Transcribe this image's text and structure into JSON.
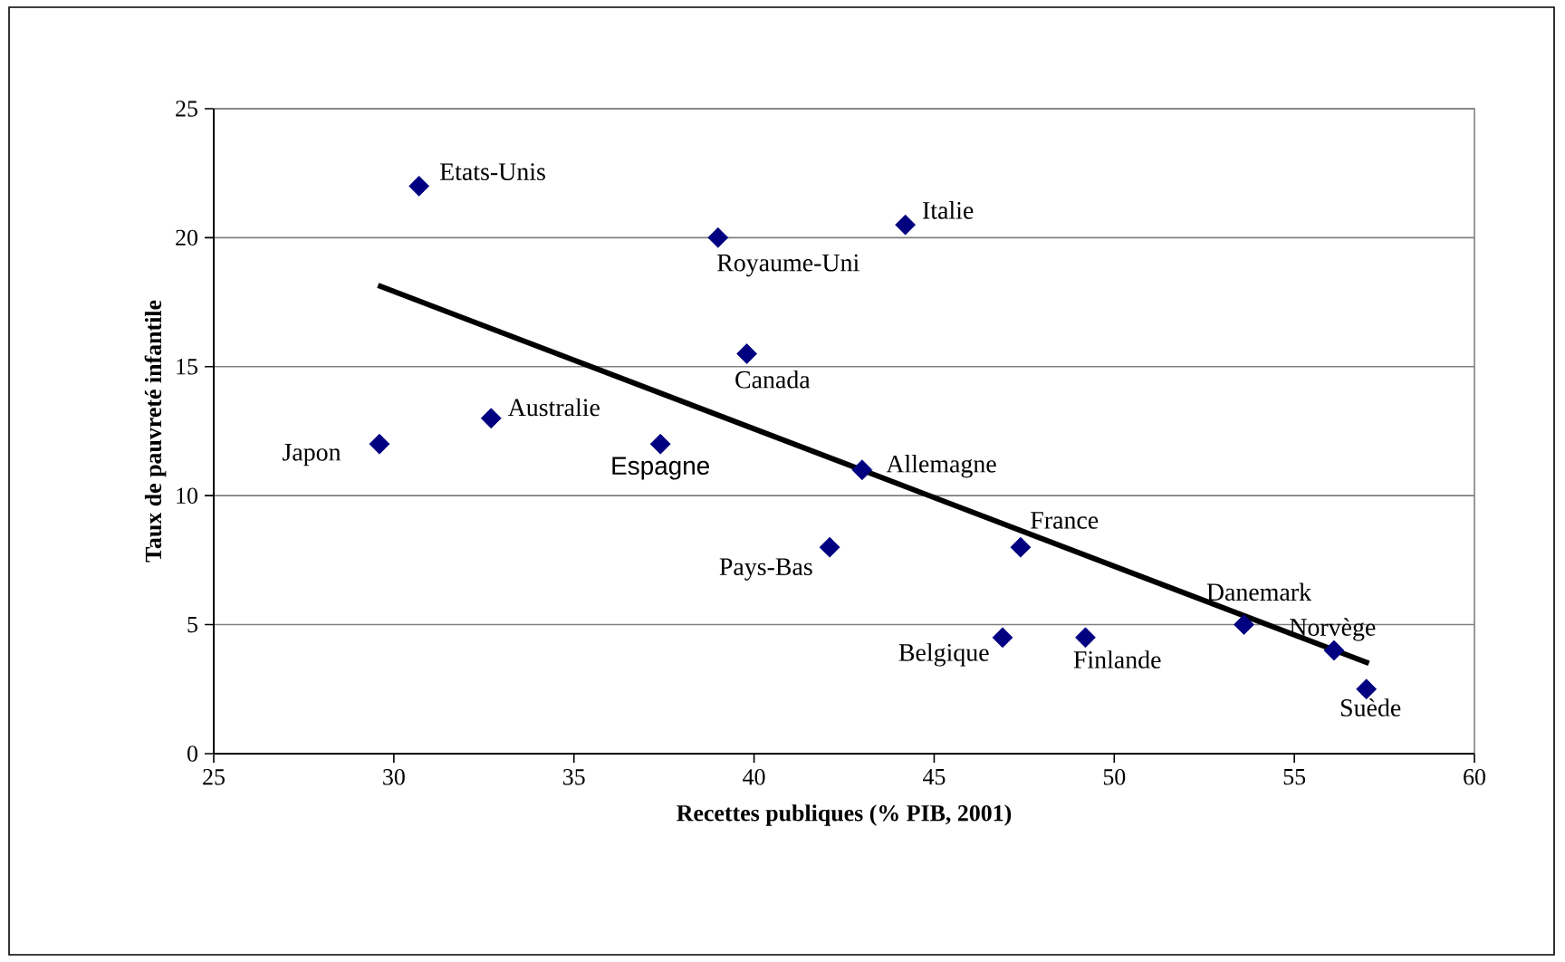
{
  "chart_data": {
    "type": "scatter",
    "xlabel": "Recettes publiques (% PIB, 2001)",
    "ylabel": "Taux de pauvreté infantile",
    "xlim": [
      25,
      60
    ],
    "xticks": [
      25,
      30,
      35,
      40,
      45,
      50,
      55,
      60
    ],
    "ylim": [
      0,
      25
    ],
    "yticks": [
      0,
      5,
      10,
      15,
      20,
      25
    ],
    "grid": "y",
    "marker": "diamond",
    "series": [
      {
        "color": "#000080",
        "x": [
          30.7,
          44.2,
          39.0,
          39.8,
          32.7,
          29.6,
          37.4,
          43.0,
          42.1,
          47.4,
          46.9,
          49.2,
          53.6,
          56.1,
          57.0
        ],
        "values": [
          22,
          20.5,
          20,
          15.5,
          13,
          12,
          12,
          11,
          8,
          8,
          4.5,
          4.5,
          5,
          4,
          2.5
        ]
      },
      {
        "type": "line",
        "color": "#000000",
        "marker": "none",
        "x": [
          29.56,
          57.07
        ],
        "values": [
          18.15,
          3.5
        ]
      }
    ],
    "annotations": [
      {
        "text": "Etats-Unis",
        "x": 30.7,
        "y": 22
      },
      {
        "text": "Italie",
        "x": 44.2,
        "y": 20.5
      },
      {
        "text": "Royaume-Uni",
        "x": 39.0,
        "y": 20
      },
      {
        "text": "Canada",
        "x": 39.8,
        "y": 15.5
      },
      {
        "text": "Australie",
        "x": 32.7,
        "y": 13
      },
      {
        "text": "Japon",
        "x": 29.6,
        "y": 12
      },
      {
        "text": "Espagne",
        "x": 37.4,
        "y": 12
      },
      {
        "text": "Allemagne",
        "x": 43.0,
        "y": 11
      },
      {
        "text": "Pays-Bas",
        "x": 42.1,
        "y": 8
      },
      {
        "text": "France",
        "x": 47.4,
        "y": 8
      },
      {
        "text": "Belgique",
        "x": 46.9,
        "y": 4.5
      },
      {
        "text": "Finlande",
        "x": 49.2,
        "y": 4.5
      },
      {
        "text": "Danemark",
        "x": 53.6,
        "y": 5
      },
      {
        "text": "Norvège",
        "x": 56.1,
        "y": 4
      },
      {
        "text": "Suède",
        "x": 57.0,
        "y": 2.5
      }
    ]
  }
}
